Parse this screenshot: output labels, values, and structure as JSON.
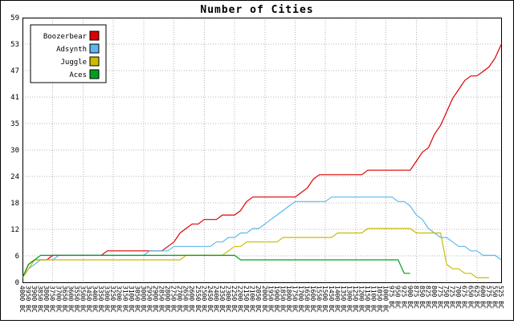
{
  "chart_data": {
    "type": "line",
    "title": "Number of Cities",
    "xlabel": "",
    "ylabel": "",
    "y_max": 59,
    "y_ticks": [
      0,
      6,
      12,
      18,
      24,
      30,
      35,
      41,
      47,
      53,
      59
    ],
    "grid": true,
    "grid_color": "#b4b4b4",
    "axis_color": "#000000",
    "background_color": "#ffffff",
    "legend_position": "top-left",
    "x_labels": [
      "4000 BC",
      "3950 BC",
      "3900 BC",
      "3850 BC",
      "3800 BC",
      "3750 BC",
      "3700 BC",
      "3650 BC",
      "3600 BC",
      "3550 BC",
      "3500 BC",
      "3450 BC",
      "3400 BC",
      "3350 BC",
      "3300 BC",
      "3250 BC",
      "3200 BC",
      "3150 BC",
      "3100 BC",
      "3050 BC",
      "3000 BC",
      "2950 BC",
      "2900 BC",
      "2850 BC",
      "2800 BC",
      "2750 BC",
      "2700 BC",
      "2650 BC",
      "2600 BC",
      "2550 BC",
      "2500 BC",
      "2450 BC",
      "2400 BC",
      "2350 BC",
      "2300 BC",
      "2250 BC",
      "2200 BC",
      "2150 BC",
      "2100 BC",
      "2050 BC",
      "2000 BC",
      "1950 BC",
      "1900 BC",
      "1850 BC",
      "1800 BC",
      "1750 BC",
      "1700 BC",
      "1650 BC",
      "1600 BC",
      "1550 BC",
      "1500 BC",
      "1450 BC",
      "1400 BC",
      "1350 BC",
      "1300 BC",
      "1250 BC",
      "1200 BC",
      "1150 BC",
      "1100 BC",
      "1050 BC",
      "1000 BC",
      "975 BC",
      "950 BC",
      "925 BC",
      "900 BC",
      "875 BC",
      "850 BC",
      "825 BC",
      "800 BC",
      "775 BC",
      "750 BC",
      "725 BC",
      "700 BC",
      "675 BC",
      "650 BC",
      "625 BC",
      "600 BC",
      "575 BC",
      "550 BC",
      "525 BC"
    ],
    "series": [
      {
        "name": "Boozerbear",
        "color": "#dd0000",
        "values": [
          1,
          4,
          5,
          5,
          5,
          6,
          6,
          6,
          6,
          6,
          6,
          6,
          6,
          6,
          7,
          7,
          7,
          7,
          7,
          7,
          7,
          7,
          7,
          7,
          8,
          9,
          11,
          12,
          13,
          13,
          14,
          14,
          14,
          15,
          15,
          15,
          16,
          18,
          19,
          19,
          19,
          19,
          19,
          19,
          19,
          19,
          20,
          21,
          23,
          24,
          24,
          24,
          24,
          24,
          24,
          24,
          24,
          25,
          25,
          25,
          25,
          25,
          25,
          25,
          25,
          27,
          29,
          30,
          33,
          35,
          38,
          41,
          43,
          45,
          46,
          46,
          47,
          48,
          50,
          53
        ]
      },
      {
        "name": "Adsynth",
        "color": "#5cb8ee",
        "values": [
          1,
          3,
          4,
          5,
          5,
          5,
          6,
          6,
          6,
          6,
          6,
          6,
          6,
          6,
          6,
          6,
          6,
          6,
          6,
          6,
          6,
          7,
          7,
          7,
          7,
          8,
          8,
          8,
          8,
          8,
          8,
          8,
          9,
          9,
          10,
          10,
          11,
          11,
          12,
          12,
          13,
          14,
          15,
          16,
          17,
          18,
          18,
          18,
          18,
          18,
          18,
          19,
          19,
          19,
          19,
          19,
          19,
          19,
          19,
          19,
          19,
          19,
          18,
          18,
          17,
          15,
          14,
          12,
          11,
          10,
          10,
          9,
          8,
          8,
          7,
          7,
          6,
          6,
          6,
          5
        ]
      },
      {
        "name": "Juggle",
        "color": "#ccbb00",
        "values": [
          1,
          3,
          5,
          5,
          5,
          5,
          5,
          5,
          5,
          5,
          5,
          5,
          5,
          5,
          5,
          5,
          5,
          5,
          5,
          5,
          5,
          5,
          5,
          5,
          5,
          5,
          5,
          6,
          6,
          6,
          6,
          6,
          6,
          6,
          7,
          8,
          8,
          9,
          9,
          9,
          9,
          9,
          9,
          10,
          10,
          10,
          10,
          10,
          10,
          10,
          10,
          10,
          11,
          11,
          11,
          11,
          11,
          12,
          12,
          12,
          12,
          12,
          12,
          12,
          12,
          11,
          11,
          11,
          11,
          11,
          4,
          3,
          3,
          2,
          2,
          1,
          1,
          1,
          null,
          null
        ]
      },
      {
        "name": "Aces",
        "color": "#00a020",
        "values": [
          1,
          4,
          5,
          6,
          6,
          6,
          6,
          6,
          6,
          6,
          6,
          6,
          6,
          6,
          6,
          6,
          6,
          6,
          6,
          6,
          6,
          6,
          6,
          6,
          6,
          6,
          6,
          6,
          6,
          6,
          6,
          6,
          6,
          6,
          6,
          6,
          5,
          5,
          5,
          5,
          5,
          5,
          5,
          5,
          5,
          5,
          5,
          5,
          5,
          5,
          5,
          5,
          5,
          5,
          5,
          5,
          5,
          5,
          5,
          5,
          5,
          5,
          5,
          2,
          2,
          null,
          null,
          null,
          null,
          null,
          null,
          null,
          null,
          null,
          null,
          null,
          null,
          null,
          null,
          null
        ]
      }
    ]
  }
}
